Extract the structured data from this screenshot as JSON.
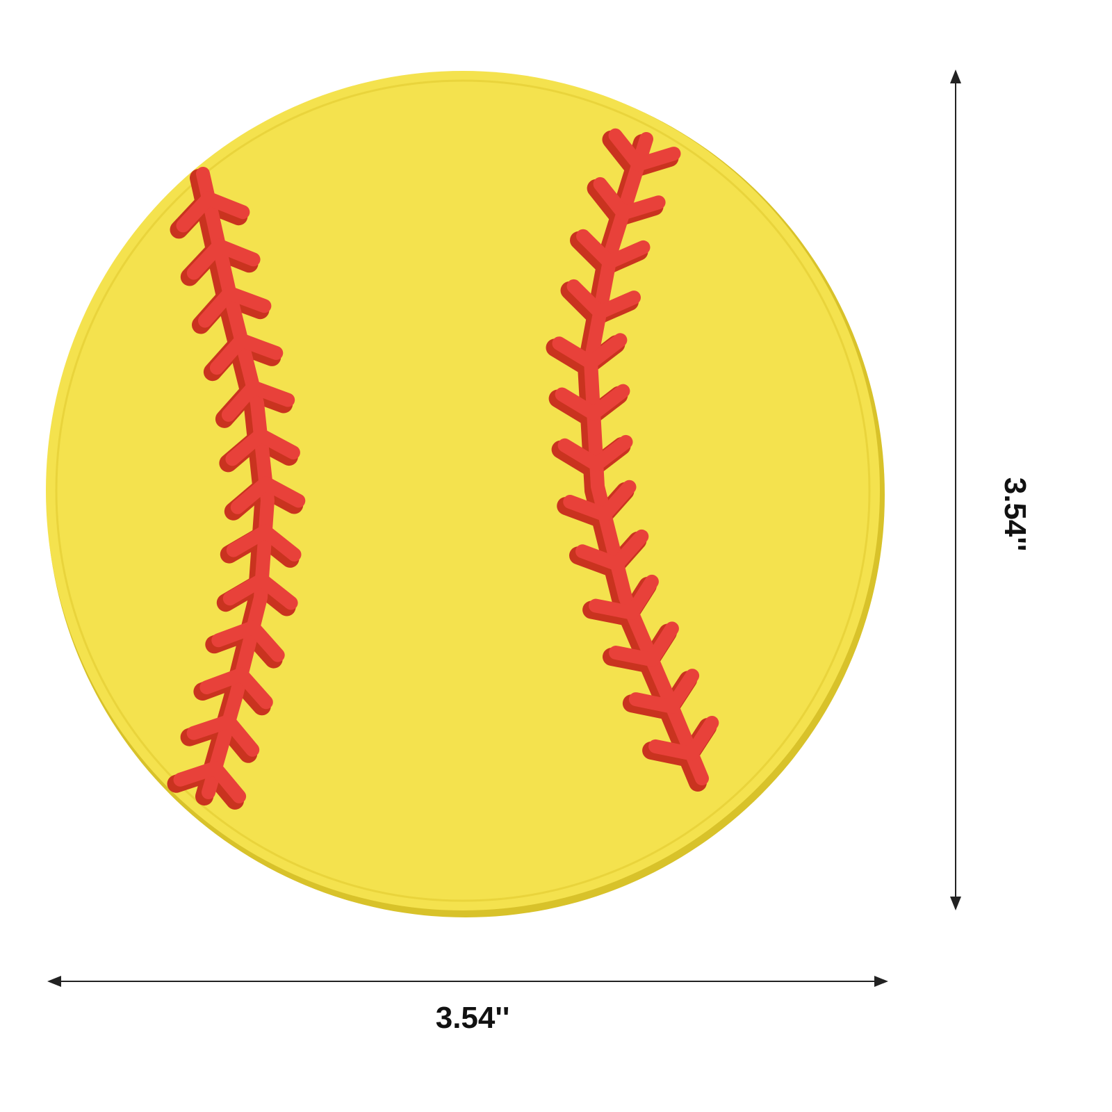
{
  "image": {
    "subject": "softball-coaster",
    "colors": {
      "ball": "#f4e24e",
      "ball_edge": "#e6cf2f",
      "rim": "#f8ec73",
      "stitch": "#e8413a",
      "stitch_shadow": "#c9331f",
      "dimension_line": "#222222",
      "text": "#111111"
    }
  },
  "dimensions": {
    "width_label": "3.54''",
    "height_label": "3.54''"
  }
}
